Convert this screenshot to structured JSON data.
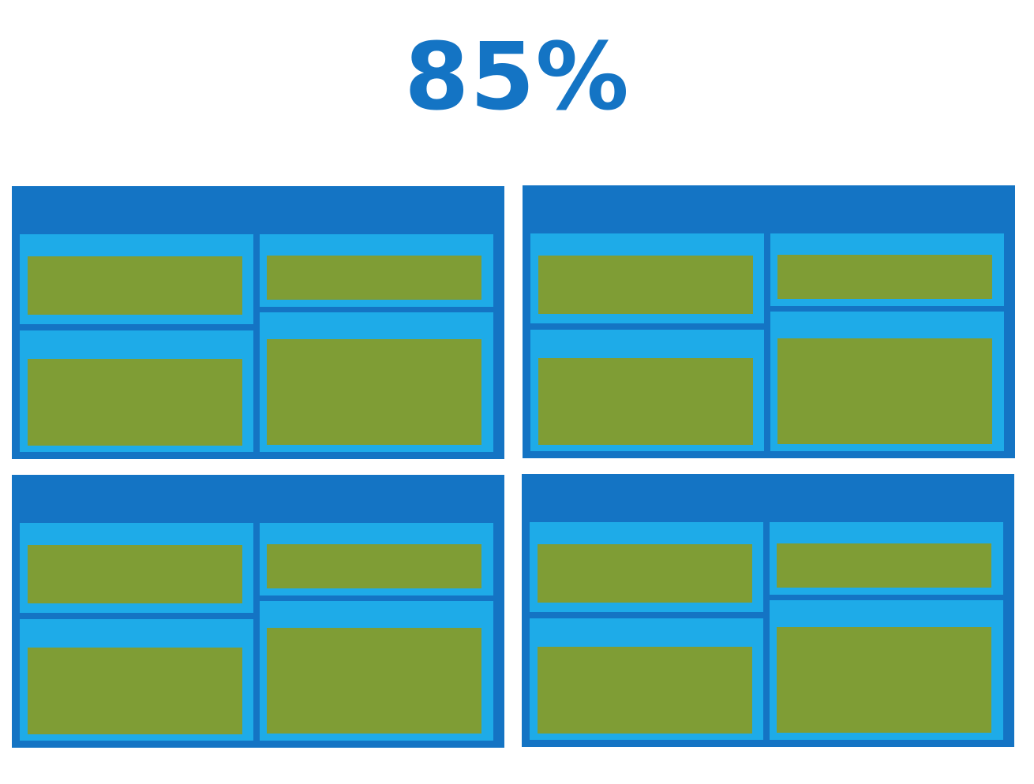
{
  "headline": {
    "text": "85%"
  },
  "colors": {
    "accent": "#1474C4",
    "window_frame": "#1474C4",
    "panel": "#1EABE8",
    "content": "#7F9D35",
    "background": "#FFFFFF"
  },
  "windows": [
    {
      "name": "window-top-left"
    },
    {
      "name": "window-top-right"
    },
    {
      "name": "window-bottom-left"
    },
    {
      "name": "window-bottom-right"
    }
  ]
}
